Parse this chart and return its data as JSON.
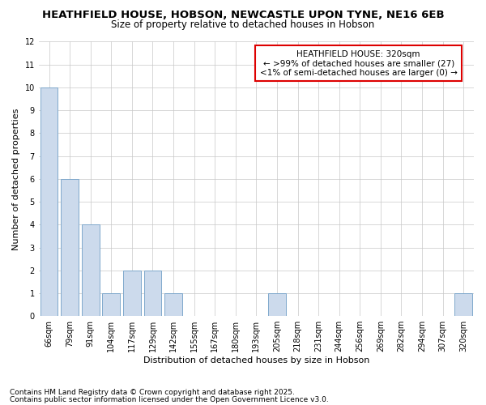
{
  "title": "HEATHFIELD HOUSE, HOBSON, NEWCASTLE UPON TYNE, NE16 6EB",
  "subtitle": "Size of property relative to detached houses in Hobson",
  "xlabel": "Distribution of detached houses by size in Hobson",
  "ylabel": "Number of detached properties",
  "categories": [
    "66sqm",
    "79sqm",
    "91sqm",
    "104sqm",
    "117sqm",
    "129sqm",
    "142sqm",
    "155sqm",
    "167sqm",
    "180sqm",
    "193sqm",
    "205sqm",
    "218sqm",
    "231sqm",
    "244sqm",
    "256sqm",
    "269sqm",
    "282sqm",
    "294sqm",
    "307sqm",
    "320sqm"
  ],
  "values": [
    10,
    6,
    4,
    1,
    2,
    2,
    1,
    0,
    0,
    0,
    0,
    1,
    0,
    0,
    0,
    0,
    0,
    0,
    0,
    0,
    1
  ],
  "bar_color": "#ccdaec",
  "bar_edge_color": "#7fa8cc",
  "ylim": [
    0,
    12
  ],
  "yticks": [
    0,
    1,
    2,
    3,
    4,
    5,
    6,
    7,
    8,
    9,
    10,
    11,
    12
  ],
  "grid_color": "#c8c8c8",
  "annotation_box_color": "#dd0000",
  "annotation_line1": "HEATHFIELD HOUSE: 320sqm",
  "annotation_line2": "← >99% of detached houses are smaller (27)",
  "annotation_line3": "<1% of semi-detached houses are larger (0) →",
  "footnote1": "Contains HM Land Registry data © Crown copyright and database right 2025.",
  "footnote2": "Contains public sector information licensed under the Open Government Licence v3.0.",
  "title_fontsize": 9.5,
  "subtitle_fontsize": 8.5,
  "axis_label_fontsize": 8,
  "tick_fontsize": 7,
  "annotation_fontsize": 7.5,
  "footnote_fontsize": 6.5
}
